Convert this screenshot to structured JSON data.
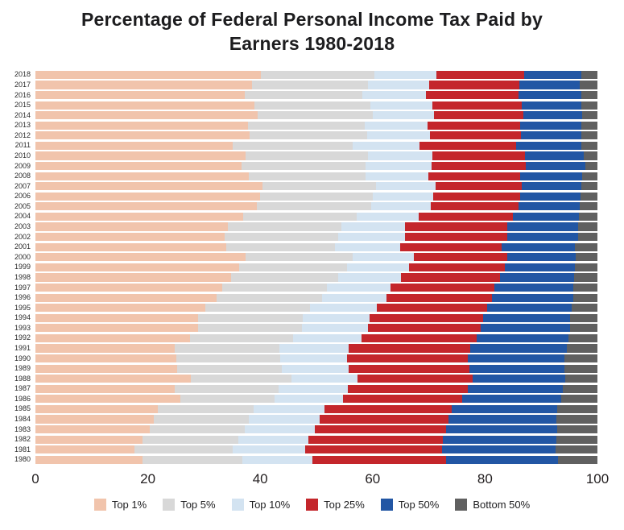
{
  "header": {
    "title_line1": "Percentage of Federal Personal Income Tax Paid by",
    "title_line2": "Earners 1980-2018"
  },
  "chart_data": {
    "type": "bar",
    "stacked": true,
    "orientation": "horizontal",
    "title": "Percentage of Federal Personal Income Tax Paid by Earners 1980-2018",
    "xlabel": "",
    "ylabel": "",
    "xlim": [
      0,
      100
    ],
    "x_ticks": [
      0,
      20,
      40,
      60,
      80,
      100
    ],
    "grid": false,
    "legend_position": "bottom",
    "note": "Series values are cumulative shares (%); segment width = difference from previous series; Bottom 50% fills to 100.",
    "years": [
      "2018",
      "2017",
      "2016",
      "2015",
      "2014",
      "2013",
      "2012",
      "2011",
      "2010",
      "2009",
      "2008",
      "2007",
      "2006",
      "2005",
      "2004",
      "2003",
      "2002",
      "2001",
      "2000",
      "1999",
      "1998",
      "1997",
      "1996",
      "1995",
      "1994",
      "1993",
      "1992",
      "1991",
      "1990",
      "1989",
      "1988",
      "1987",
      "1986",
      "1985",
      "1984",
      "1983",
      "1982",
      "1981",
      "1980"
    ],
    "series": [
      {
        "name": "Top 1%",
        "key": "top-1",
        "color": "#F1C4AC",
        "cumulative": [
          40.1,
          38.5,
          37.3,
          39.0,
          39.5,
          37.8,
          38.1,
          35.1,
          37.4,
          36.7,
          38.0,
          40.4,
          39.9,
          39.4,
          36.9,
          34.3,
          33.7,
          33.9,
          37.4,
          36.2,
          34.8,
          33.2,
          32.3,
          30.3,
          28.9,
          29.0,
          27.5,
          24.8,
          25.1,
          25.2,
          27.6,
          24.8,
          25.8,
          21.8,
          21.1,
          20.3,
          19.0,
          17.6,
          19.1
        ]
      },
      {
        "name": "Top 5%",
        "key": "top-5",
        "color": "#D8D8D8",
        "cumulative": [
          60.3,
          59.1,
          58.2,
          59.6,
          60.0,
          58.6,
          59.0,
          56.5,
          59.1,
          58.7,
          58.7,
          60.6,
          60.1,
          59.7,
          57.1,
          54.4,
          53.8,
          53.3,
          56.5,
          55.5,
          53.8,
          51.9,
          51.0,
          48.9,
          47.5,
          47.4,
          45.9,
          43.4,
          43.6,
          43.9,
          45.6,
          43.3,
          42.6,
          38.8,
          38.0,
          37.3,
          36.1,
          35.1,
          36.8
        ]
      },
      {
        "name": "Top 10%",
        "key": "top-10",
        "color": "#D3E3F1",
        "cumulative": [
          71.4,
          70.1,
          69.5,
          70.6,
          70.9,
          69.8,
          70.2,
          68.3,
          70.6,
          70.5,
          69.9,
          71.2,
          70.8,
          70.3,
          68.2,
          65.8,
          65.7,
          64.9,
          67.3,
          66.5,
          65.0,
          63.2,
          62.5,
          60.8,
          59.5,
          59.2,
          58.0,
          55.8,
          55.4,
          55.8,
          57.3,
          55.6,
          54.7,
          51.5,
          50.6,
          49.7,
          48.6,
          48.0,
          49.3
        ]
      },
      {
        "name": "Top 25%",
        "key": "top-25",
        "color": "#C4262B",
        "cumulative": [
          87.0,
          86.1,
          86.0,
          86.6,
          86.8,
          86.3,
          86.4,
          85.6,
          87.1,
          87.3,
          86.3,
          86.6,
          86.3,
          86.0,
          84.9,
          83.9,
          83.9,
          82.9,
          84.0,
          83.5,
          82.7,
          81.7,
          81.3,
          80.4,
          79.6,
          79.3,
          78.5,
          77.3,
          77.0,
          77.2,
          77.8,
          76.9,
          76.0,
          74.1,
          73.5,
          73.1,
          72.5,
          72.3,
          73.0
        ]
      },
      {
        "name": "Top 50%",
        "key": "top-50",
        "color": "#2256A4",
        "cumulative": [
          97.1,
          96.9,
          97.1,
          97.2,
          97.3,
          97.2,
          97.2,
          97.1,
          97.6,
          97.8,
          97.3,
          97.1,
          97.0,
          96.9,
          96.7,
          96.5,
          96.5,
          96.0,
          96.1,
          96.0,
          95.8,
          95.7,
          95.7,
          95.4,
          95.2,
          95.2,
          94.9,
          94.5,
          94.2,
          94.2,
          94.3,
          93.9,
          93.5,
          92.8,
          92.7,
          92.8,
          92.7,
          92.6,
          93.0
        ]
      },
      {
        "name": "Bottom 50%",
        "key": "bottom-50",
        "color": "#606060",
        "cumulative": null
      }
    ]
  }
}
